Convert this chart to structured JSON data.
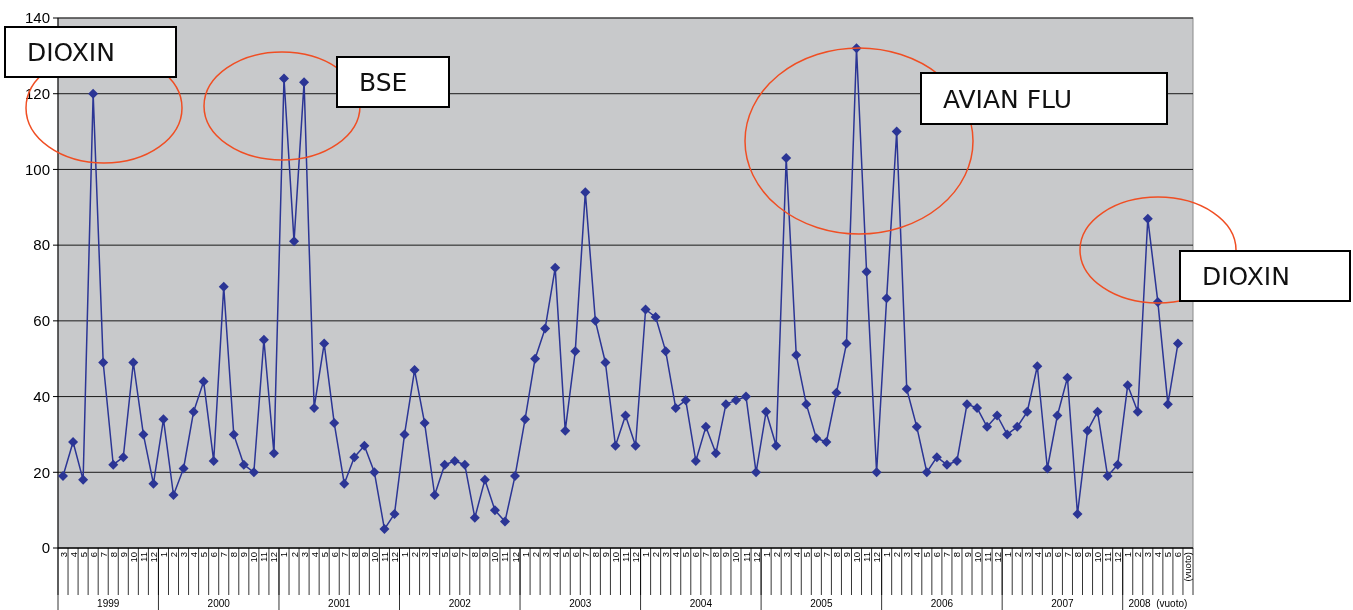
{
  "chart_data": {
    "type": "line",
    "categories": [
      "3",
      "4",
      "5",
      "6",
      "7",
      "8",
      "9",
      "10",
      "11",
      "12",
      "1",
      "2",
      "3",
      "4",
      "5",
      "6",
      "7",
      "8",
      "9",
      "10",
      "11",
      "12",
      "1",
      "2",
      "3",
      "4",
      "5",
      "6",
      "7",
      "8",
      "9",
      "10",
      "11",
      "12",
      "1",
      "2",
      "3",
      "4",
      "5",
      "6",
      "7",
      "8",
      "9",
      "10",
      "11",
      "12",
      "1",
      "2",
      "3",
      "4",
      "5",
      "6",
      "7",
      "8",
      "9",
      "10",
      "11",
      "12",
      "1",
      "2",
      "3",
      "4",
      "5",
      "6",
      "7",
      "8",
      "9",
      "10",
      "11",
      "12",
      "1",
      "2",
      "3",
      "4",
      "5",
      "6",
      "7",
      "8",
      "9",
      "10",
      "11",
      "12",
      "1",
      "2",
      "3",
      "4",
      "5",
      "6",
      "7",
      "8",
      "9",
      "10",
      "11",
      "12",
      "1",
      "2",
      "3",
      "4",
      "5",
      "6",
      "7",
      "8",
      "9",
      "10",
      "11",
      "12",
      "1",
      "2",
      "3",
      "4",
      "5",
      "6",
      "(vuoto)"
    ],
    "series": [
      {
        "color": "#2b3595",
        "values": [
          19,
          28,
          18,
          120,
          49,
          22,
          24,
          49,
          30,
          17,
          34,
          14,
          21,
          36,
          44,
          23,
          69,
          30,
          22,
          20,
          55,
          25,
          124,
          81,
          123,
          37,
          54,
          33,
          17,
          24,
          27,
          20,
          5,
          9,
          30,
          47,
          33,
          14,
          22,
          23,
          22,
          8,
          18,
          10,
          7,
          19,
          34,
          50,
          58,
          74,
          31,
          52,
          94,
          60,
          49,
          27,
          35,
          27,
          63,
          61,
          52,
          37,
          39,
          23,
          32,
          25,
          38,
          39,
          40,
          20,
          36,
          27,
          103,
          51,
          38,
          29,
          28,
          41,
          54,
          132,
          73,
          20,
          66,
          110,
          42,
          32,
          20,
          24,
          22,
          23,
          38,
          37,
          32,
          35,
          30,
          32,
          36,
          48,
          21,
          35,
          45,
          9,
          31,
          36,
          19,
          22,
          43,
          36,
          87,
          65,
          38,
          54,
          null
        ]
      }
    ],
    "ylim": [
      0,
      140
    ],
    "yticks": [
      0,
      20,
      40,
      60,
      80,
      100,
      120,
      140
    ],
    "grid": "y",
    "marker": "diamond",
    "line_style": "solid",
    "annotations": [
      "DIOXIN",
      "BSE",
      "AVIAN FLU",
      "DIOXIN",
      "1999",
      "2000",
      "2001",
      "2002",
      "2003",
      "2004",
      "2005",
      "2006",
      "2007",
      "2008  (vuoto)"
    ]
  }
}
